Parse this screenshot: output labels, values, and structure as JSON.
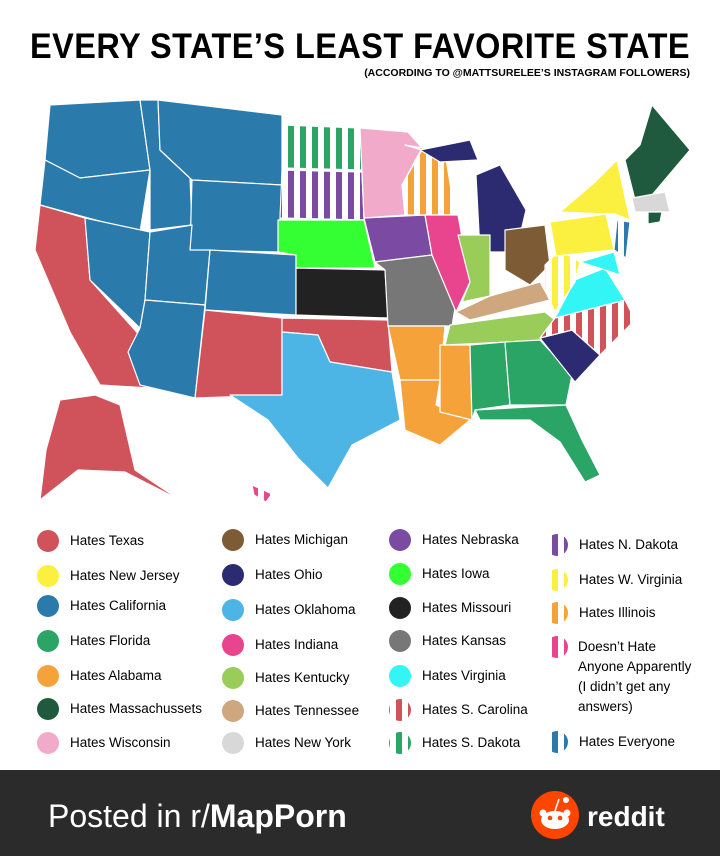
{
  "header": {
    "title": "EVERY STATE’S LEAST FAVORITE STATE",
    "subtitle": "(ACCORDING TO @MATTSURELEE’S INSTAGRAM FOLLOWERS)"
  },
  "legend": [
    {
      "label": "Hates Texas",
      "color": "#d0525a"
    },
    {
      "label": "Hates New Jersey",
      "color": "#fbf03f"
    },
    {
      "label": "Hates California",
      "color": "#2a7aab"
    },
    {
      "label": "Hates Florida",
      "color": "#2aa566"
    },
    {
      "label": "Hates Alabama",
      "color": "#f6a23b"
    },
    {
      "label": "Hates Massachussets",
      "color": "#1f5a3f"
    },
    {
      "label": "Hates Wisconsin",
      "color": "#f2aacb"
    },
    {
      "label": "Hates Michigan",
      "color": "#7d5b35"
    },
    {
      "label": "Hates Ohio",
      "color": "#2c2a70"
    },
    {
      "label": "Hates Oklahoma",
      "color": "#4db4e6"
    },
    {
      "label": "Hates Indiana",
      "color": "#e8458e"
    },
    {
      "label": "Hates Kentucky",
      "color": "#9acc5a"
    },
    {
      "label": "Hates Tennessee",
      "color": "#cfa77e"
    },
    {
      "label": "Hates New York",
      "color": "#d8d8d8"
    },
    {
      "label": "Hates Nebraska",
      "color": "#7b4ba3"
    },
    {
      "label": "Hates Iowa",
      "color": "#33ff33"
    },
    {
      "label": "Hates Missouri",
      "color": "#222222"
    },
    {
      "label": "Hates Kansas",
      "color": "#777777"
    },
    {
      "label": "Hates Virginia",
      "color": "#33f5f5"
    },
    {
      "label": "Hates S. Carolina",
      "color": "#d0525a",
      "striped": true
    },
    {
      "label": "Hates S. Dakota",
      "color": "#2aa566",
      "striped": true
    },
    {
      "label": "Hates N. Dakota",
      "color": "#7b4ba3",
      "striped": true
    },
    {
      "label": "Hates W. Virginia",
      "color": "#fbf03f",
      "striped": true
    },
    {
      "label": "Hates Illinois",
      "color": "#f6a23b",
      "striped": true
    },
    {
      "label": [
        "Doesn’t Hate",
        "Anyone Apparently",
        "(I didn’t get any",
        "answers)"
      ],
      "color": "#e8458e",
      "striped": true
    },
    {
      "label": "Hates Everyone",
      "color": "#2a7aab",
      "striped": true
    }
  ],
  "footer": {
    "prefix": "Posted in r/",
    "subreddit": "MapPorn",
    "brand": "reddit"
  }
}
